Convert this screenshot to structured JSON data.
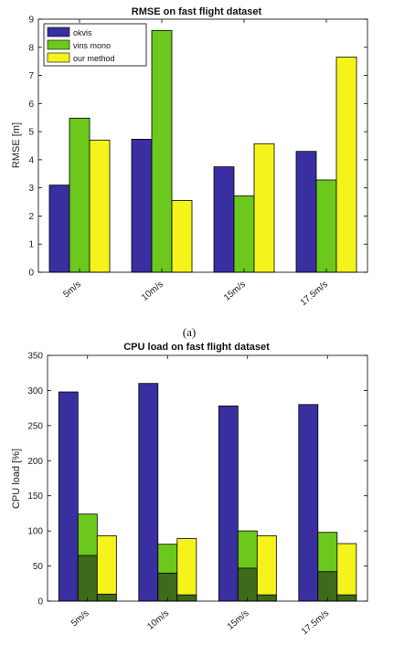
{
  "chart_data": [
    {
      "type": "bar",
      "title": "RMSE on fast flight dataset",
      "ylabel": "RMSE [m]",
      "xlabel": "",
      "ylim": [
        0,
        9
      ],
      "yticks": [
        0,
        1,
        2,
        3,
        4,
        5,
        6,
        7,
        8,
        9
      ],
      "categories": [
        "5m/s",
        "10m/s",
        "15m/s",
        "17.5m/s"
      ],
      "legend_position": "top-left",
      "series": [
        {
          "name": "okvis",
          "color": "#3a2fa0",
          "values": [
            3.1,
            4.73,
            3.75,
            4.3
          ]
        },
        {
          "name": "vins mono",
          "color": "#6cc81c",
          "values": [
            5.48,
            8.6,
            2.72,
            3.28
          ]
        },
        {
          "name": "our method",
          "color": "#f4f41c",
          "values": [
            4.7,
            2.55,
            4.57,
            7.65
          ]
        }
      ]
    },
    {
      "type": "bar",
      "title": "CPU load on fast flight dataset",
      "ylabel": "CPU load [%]",
      "xlabel": "",
      "ylim": [
        0,
        350
      ],
      "yticks": [
        0,
        50,
        100,
        150,
        200,
        250,
        300,
        350
      ],
      "categories": [
        "5m/s",
        "10m/s",
        "15m/s",
        "17.5m/s"
      ],
      "series": [
        {
          "name": "okvis",
          "color": "#3a2fa0",
          "values": [
            298,
            310,
            278,
            280
          ]
        },
        {
          "name": "vins mono",
          "color": "#6cc81c",
          "values": [
            124,
            81,
            100,
            98
          ],
          "inner_values": [
            65,
            40,
            47,
            42
          ],
          "inner_color": "#3e6a1c"
        },
        {
          "name": "our method",
          "color": "#f4f41c",
          "values": [
            93,
            89,
            93,
            82
          ],
          "inner_values": [
            10,
            9,
            9,
            9
          ],
          "inner_color": "#3e6a1c"
        }
      ]
    }
  ],
  "caption": "(a)"
}
